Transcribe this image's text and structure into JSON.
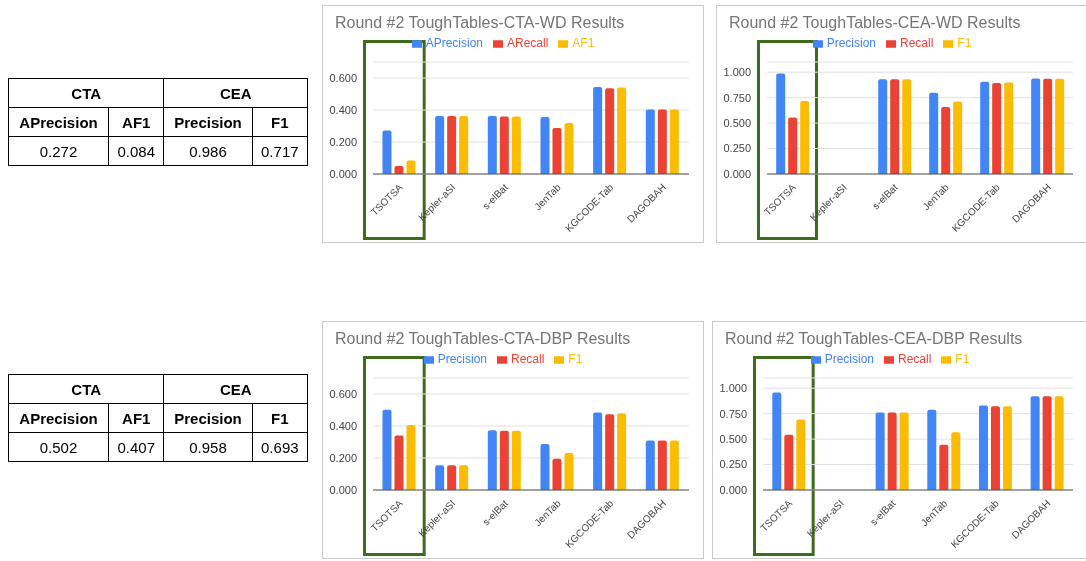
{
  "chart_data": [
    {
      "type": "other",
      "annotations": [
        "CTA",
        "CEA",
        "APrecision",
        "AF1",
        "Precision",
        "F1",
        "0.272",
        "0.084",
        "0.986",
        "0.717"
      ]
    },
    {
      "type": "bar",
      "title": "Round #2 ToughTables-CTA-WD Results",
      "categories": [
        "TSOTSA",
        "Kepler-aSI",
        "s-elBat",
        "JenTab",
        "KGCODE-Tab",
        "DAGOBAH"
      ],
      "series": [
        {
          "name": "APrecision",
          "color": "#4285f4",
          "values": [
            0.272,
            0.363,
            0.363,
            0.356,
            0.543,
            0.403
          ]
        },
        {
          "name": "ARecall",
          "color": "#ea4335",
          "values": [
            0.05,
            0.363,
            0.36,
            0.287,
            0.536,
            0.403
          ]
        },
        {
          "name": "AF1",
          "color": "#fbbc04",
          "values": [
            0.084,
            0.363,
            0.36,
            0.319,
            0.54,
            0.403
          ]
        }
      ],
      "ylim": [
        0,
        0.7
      ],
      "yticks": [
        {
          "value": 0,
          "label": "0.000"
        },
        {
          "value": 0.2,
          "label": "0.200"
        },
        {
          "value": 0.4,
          "label": "0.400"
        },
        {
          "value": 0.6,
          "label": "0.600"
        }
      ],
      "grid": "y",
      "legend": "top"
    },
    {
      "type": "bar",
      "title": "Round #2 ToughTables-CEA-WD Results",
      "categories": [
        "TSOTSA",
        "Kepler-aSI",
        "s-elBat",
        "JenTab",
        "KGCODE-Tab",
        "DAGOBAH"
      ],
      "series": [
        {
          "name": "Precision",
          "color": "#4285f4",
          "values": [
            0.986,
            null,
            0.93,
            0.798,
            0.905,
            0.938
          ]
        },
        {
          "name": "Recall",
          "color": "#ea4335",
          "values": [
            0.555,
            null,
            0.93,
            0.658,
            0.894,
            0.936
          ]
        },
        {
          "name": "F1",
          "color": "#fbbc04",
          "values": [
            0.717,
            null,
            0.93,
            0.711,
            0.899,
            0.936
          ]
        }
      ],
      "ylim": [
        0,
        1.1
      ],
      "yticks": [
        {
          "value": 0,
          "label": "0.000"
        },
        {
          "value": 0.25,
          "label": "0.250"
        },
        {
          "value": 0.5,
          "label": "0.500"
        },
        {
          "value": 0.75,
          "label": "0.750"
        },
        {
          "value": 1,
          "label": "1.000"
        }
      ],
      "grid": "y",
      "legend": "top"
    },
    {
      "type": "other",
      "annotations": [
        "CTA",
        "CEA",
        "APrecision",
        "AF1",
        "Precision",
        "F1",
        "0.502",
        "0.407",
        "0.958",
        "0.693"
      ]
    },
    {
      "type": "bar",
      "title": "Round #2 ToughTables-CTA-DBP Results",
      "categories": [
        "TSOTSA",
        "Kepler-aSI",
        "s-elBat",
        "JenTab",
        "KGCODE-Tab",
        "DAGOBAH"
      ],
      "series": [
        {
          "name": "Precision",
          "color": "#4285f4",
          "values": [
            0.502,
            0.155,
            0.373,
            0.288,
            0.484,
            0.31
          ]
        },
        {
          "name": "Recall",
          "color": "#ea4335",
          "values": [
            0.341,
            0.155,
            0.371,
            0.196,
            0.474,
            0.31
          ]
        },
        {
          "name": "F1",
          "color": "#fbbc04",
          "values": [
            0.407,
            0.155,
            0.371,
            0.231,
            0.479,
            0.31
          ]
        }
      ],
      "ylim": [
        0,
        0.7
      ],
      "yticks": [
        {
          "value": 0,
          "label": "0.000"
        },
        {
          "value": 0.2,
          "label": "0.200"
        },
        {
          "value": 0.4,
          "label": "0.400"
        },
        {
          "value": 0.6,
          "label": "0.600"
        }
      ],
      "grid": "y",
      "legend": "top"
    },
    {
      "type": "bar",
      "title": "Round #2 ToughTables-CEA-DBP Results",
      "categories": [
        "TSOTSA",
        "Kepler-aSI",
        "s-elBat",
        "JenTab",
        "KGCODE-Tab",
        "DAGOBAH"
      ],
      "series": [
        {
          "name": "Precision",
          "color": "#4285f4",
          "values": [
            0.958,
            null,
            0.761,
            0.789,
            0.831,
            0.921
          ]
        },
        {
          "name": "Recall",
          "color": "#ea4335",
          "values": [
            0.542,
            null,
            0.761,
            0.444,
            0.823,
            0.921
          ]
        },
        {
          "name": "F1",
          "color": "#fbbc04",
          "values": [
            0.693,
            null,
            0.761,
            0.567,
            0.823,
            0.921
          ]
        }
      ],
      "ylim": [
        0,
        1.1
      ],
      "yticks": [
        {
          "value": 0,
          "label": "0.000"
        },
        {
          "value": 0.25,
          "label": "0.250"
        },
        {
          "value": 0.5,
          "label": "0.500"
        },
        {
          "value": 0.75,
          "label": "0.750"
        },
        {
          "value": 1,
          "label": "1.000"
        }
      ],
      "grid": "y",
      "legend": "top"
    }
  ]
}
